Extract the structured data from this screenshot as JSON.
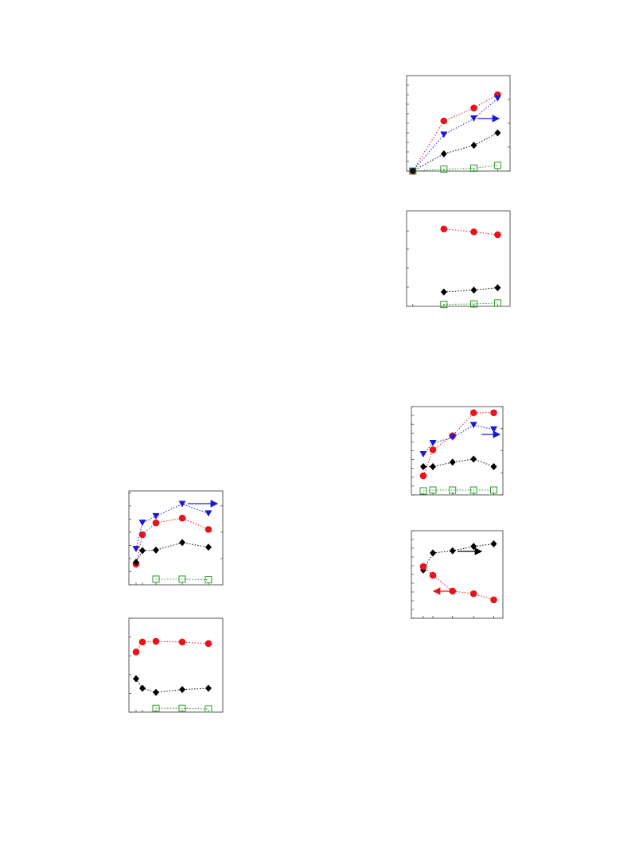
{
  "chart_data": [
    {
      "type": "line",
      "xlim": [
        0,
        100
      ],
      "ylim": [
        0,
        100
      ],
      "yticks": [
        0,
        10,
        20,
        30,
        40,
        50,
        60,
        70,
        80,
        90,
        100
      ],
      "y2lim": [
        0,
        100
      ],
      "y2ticks": [
        0,
        25,
        50,
        75,
        100
      ],
      "xticks": [
        6,
        36,
        65,
        88
      ],
      "x": [
        6,
        36,
        65,
        88
      ],
      "series": [
        {
          "color": "#e8141b",
          "marker": "circle",
          "values": [
            0,
            52.5,
            66,
            80
          ]
        },
        {
          "color": "#1a1ad6",
          "marker": "triangle",
          "axis": "y2",
          "values": [
            0,
            38,
            55,
            76
          ]
        },
        {
          "color": "#000000",
          "marker": "diamond",
          "values": [
            0,
            18,
            27,
            40
          ]
        },
        {
          "color": "#2a9a2a",
          "marker": "square",
          "values": [
            0,
            2,
            3,
            6
          ]
        }
      ]
    },
    {
      "type": "line",
      "xlim": [
        0,
        100
      ],
      "ylim": [
        0,
        100
      ],
      "yticks": [
        0,
        20,
        40,
        60,
        79
      ],
      "xticks": [
        6,
        36,
        65,
        88
      ],
      "x": [
        36,
        65,
        88
      ],
      "series": [
        {
          "color": "#e8141b",
          "marker": "circle",
          "values": [
            81,
            78,
            75
          ]
        },
        {
          "color": "#000000",
          "marker": "diamond",
          "values": [
            15,
            17,
            19.5
          ]
        },
        {
          "color": "#2a9a2a",
          "marker": "square",
          "values": [
            2,
            2.5,
            3.5
          ]
        }
      ]
    },
    {
      "type": "line",
      "xlim": [
        0,
        100
      ],
      "ylim": [
        0,
        100
      ],
      "yticks": [
        0,
        10,
        20,
        30,
        40,
        50,
        60,
        70,
        80,
        90,
        100
      ],
      "y2lim": [
        0,
        100
      ],
      "y2ticks": [
        0,
        25,
        50,
        75,
        100
      ],
      "xticks": [
        13,
        23.5,
        45,
        68,
        90
      ],
      "x": [
        13,
        23.5,
        45,
        68,
        90
      ],
      "series": [
        {
          "color": "#e8141b",
          "marker": "circle",
          "values": [
            21.6,
            51,
            67,
            93,
            93
          ]
        },
        {
          "color": "#1a1ad6",
          "marker": "triangle",
          "axis": "y2",
          "values": [
            46,
            58.6,
            65,
            79,
            74
          ]
        },
        {
          "color": "#000000",
          "marker": "diamond",
          "values": [
            32,
            32,
            37,
            40.5,
            32
          ]
        },
        {
          "color": "#2a9a2a",
          "marker": "square",
          "values": [
            4.5,
            5.4,
            5.4,
            5.4,
            5.4
          ]
        }
      ]
    },
    {
      "type": "line",
      "xlim": [
        0,
        100
      ],
      "ylim": [
        0,
        100
      ],
      "yticks": [
        0,
        10,
        20,
        30,
        40,
        50,
        60,
        70,
        80,
        90,
        100
      ],
      "xticks": [
        13,
        23.5,
        45,
        68,
        90
      ],
      "x": [
        13,
        23.5,
        45,
        68,
        90
      ],
      "series": [
        {
          "color": "#000000",
          "marker": "diamond",
          "values": [
            55,
            74.5,
            77,
            82,
            85
          ]
        },
        {
          "color": "#e8141b",
          "marker": "circle",
          "values": [
            59,
            49,
            31,
            28,
            21
          ]
        }
      ]
    },
    {
      "type": "line",
      "xlim": [
        0,
        100
      ],
      "ylim": [
        0,
        100
      ],
      "yticks": [
        0,
        14,
        28,
        42,
        56,
        70,
        84,
        98
      ],
      "y2lim": [
        0,
        100
      ],
      "y2ticks": [
        28,
        56,
        84
      ],
      "xticks": [
        7.6,
        14.4,
        28.8,
        56.8,
        84.7
      ],
      "x": [
        7.6,
        14.4,
        28.8,
        56.8,
        84.7
      ],
      "series": [
        {
          "color": "#e8141b",
          "marker": "circle",
          "values": [
            22,
            53.4,
            66,
            71,
            59
          ]
        },
        {
          "color": "#1a1ad6",
          "marker": "triangle",
          "axis": "y2",
          "values": [
            38,
            66,
            73,
            86,
            76
          ]
        },
        {
          "color": "#000000",
          "marker": "diamond",
          "values": [
            24,
            36.4,
            37,
            45,
            40
          ]
        },
        {
          "color": "#2a9a2a",
          "marker": "square",
          "values": [
            null,
            null,
            6,
            6,
            5.4
          ]
        }
      ]
    },
    {
      "type": "line",
      "xlim": [
        0,
        100
      ],
      "ylim": [
        0,
        100
      ],
      "yticks": [
        0,
        20,
        40,
        60,
        80,
        100
      ],
      "xticks": [
        7.6,
        14.4,
        28.8,
        56.8,
        84.7
      ],
      "x": [
        7.6,
        14.4,
        28.8,
        56.8,
        84.7
      ],
      "series": [
        {
          "color": "#e8141b",
          "marker": "circle",
          "values": [
            64,
            74.6,
            75.4,
            74.6,
            73
          ]
        },
        {
          "color": "#000000",
          "marker": "diamond",
          "values": [
            35.6,
            25.4,
            21,
            24,
            25.4
          ]
        },
        {
          "color": "#2a9a2a",
          "marker": "square",
          "values": [
            null,
            null,
            4,
            4,
            3.4
          ]
        }
      ]
    }
  ]
}
